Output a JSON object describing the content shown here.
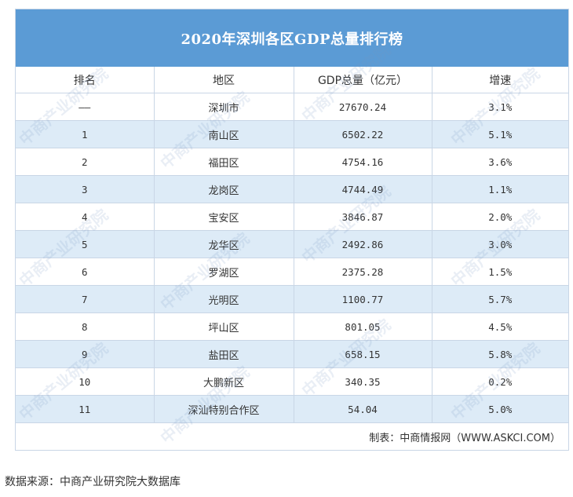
{
  "title": "2020年深圳各区GDP总量排行榜",
  "columns": [
    "排名",
    "地区",
    "GDP总量（亿元）",
    "增速"
  ],
  "rows": [
    [
      "——",
      "深圳市",
      "27670.24",
      "3.1%"
    ],
    [
      "1",
      "南山区",
      "6502.22",
      "5.1%"
    ],
    [
      "2",
      "福田区",
      "4754.16",
      "3.6%"
    ],
    [
      "3",
      "龙岗区",
      "4744.49",
      "1.1%"
    ],
    [
      "4",
      "宝安区",
      "3846.87",
      "2.0%"
    ],
    [
      "5",
      "龙华区",
      "2492.86",
      "3.0%"
    ],
    [
      "6",
      "罗湖区",
      "2375.28",
      "1.5%"
    ],
    [
      "7",
      "光明区",
      "1100.77",
      "5.7%"
    ],
    [
      "8",
      "坪山区",
      "801.05",
      "4.5%"
    ],
    [
      "9",
      "盐田区",
      "658.15",
      "5.8%"
    ],
    [
      "10",
      "大鹏新区",
      "340.35",
      "0.2%"
    ],
    [
      "11",
      "深汕特别合作区",
      "54.04",
      "5.0%"
    ]
  ],
  "footer_credit": "制表：中商情报网（WWW.ASKCI.COM）",
  "source_note": "数据来源：中商产业研究院大数据库",
  "watermark_text": "中商产业研究院",
  "colors": {
    "title_bg": "#5b9bd5",
    "stripe": "#ddebf7",
    "border": "#c9d6e6"
  }
}
